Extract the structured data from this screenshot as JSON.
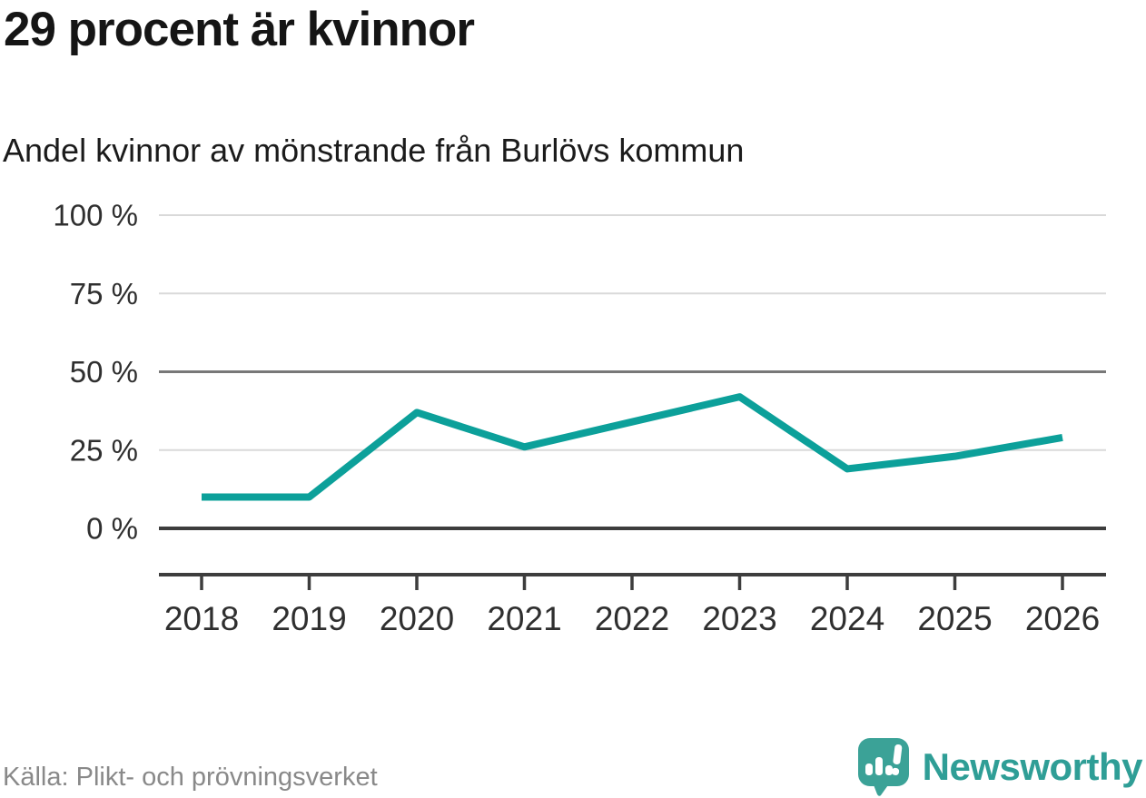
{
  "header": {
    "title": "29 procent är kvinnor",
    "subtitle": "Andel kvinnor av mönstrande från Burlövs kommun"
  },
  "chart_data": {
    "type": "line",
    "title": "29 procent är kvinnor",
    "subtitle": "Andel kvinnor av mönstrande från Burlövs kommun",
    "categories": [
      "2018",
      "2019",
      "2020",
      "2021",
      "2022",
      "2023",
      "2024",
      "2025",
      "2026"
    ],
    "series": [
      {
        "name": "Andel kvinnor av mönstrande",
        "values": [
          10,
          10,
          37,
          26,
          34,
          42,
          19,
          23,
          29
        ]
      }
    ],
    "unit": "%",
    "xlabel": "",
    "ylabel": "",
    "ylim": [
      0,
      100
    ],
    "yticks": [
      0,
      25,
      50,
      75,
      100
    ],
    "ytick_labels": [
      "0 %",
      "25 %",
      "50 %",
      "75 %",
      "100 %"
    ],
    "ytick_styles": [
      "dark",
      "light",
      "mid",
      "light",
      "light"
    ],
    "grid": "horizontal",
    "legend": "none"
  },
  "footer": {
    "source": "Källa: Plikt- och prövningsverket",
    "brand": "Newsworthy"
  },
  "colors": {
    "line": "#0ca09a",
    "title_text": "#151515",
    "axis_text": "#2f2f2f",
    "grid_light": "#d9d9d9",
    "grid_mid": "#787878",
    "grid_dark": "#3d3d3d",
    "source_text": "#898989",
    "brand_teal": "#2f9e96",
    "logo_teal": "#3ba297"
  }
}
